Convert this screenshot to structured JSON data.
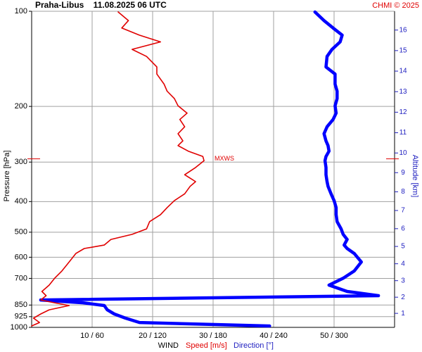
{
  "chart_data": {
    "type": "line",
    "title": "Praha-Libus    11.08.2025 06 UTC",
    "source": "CHMI © 2025",
    "ylabel": "Pressure [hPa]",
    "y2label": "Altitude [km]",
    "xlabel": "WIND",
    "pressure": [
      990,
      965,
      935,
      907,
      880,
      853,
      836,
      819,
      794,
      770,
      735,
      699,
      663,
      621,
      584,
      563,
      549,
      527,
      508,
      488,
      463,
      440,
      418,
      397,
      378,
      358,
      346,
      329,
      312,
      297,
      288,
      277,
      266,
      257,
      244,
      232,
      220,
      210,
      199,
      189,
      179,
      170,
      158,
      150,
      139,
      132,
      125,
      119,
      113,
      107,
      100.5
    ],
    "series": [
      {
        "name": "Speed [m/s]",
        "color": "#e00000",
        "axis": "x",
        "values": [
          0,
          1.3,
          0.3,
          1.5,
          2.9,
          6.2,
          3.8,
          1.5,
          2.4,
          1.7,
          2.9,
          3.8,
          5.0,
          6.2,
          7.3,
          8.7,
          12.0,
          13.1,
          16.6,
          19.0,
          19.5,
          21.3,
          22.4,
          23.6,
          25.3,
          26.2,
          27.1,
          25.3,
          27.1,
          28.5,
          28.3,
          25.9,
          24.2,
          25.0,
          24.2,
          25.3,
          24.5,
          25.7,
          24.2,
          23.6,
          22.4,
          21.9,
          20.7,
          20.7,
          19.0,
          16.6,
          21.3,
          17.8,
          14.9,
          16.0,
          14.3
        ]
      },
      {
        "name": "Direction [°]",
        "color": "#0000ff",
        "axis": "x2",
        "values": [
          236,
          107,
          93,
          82,
          75,
          72,
          51,
          9,
          344,
          313,
          295,
          309,
          320,
          327,
          320,
          313,
          310,
          313,
          309,
          307,
          303,
          302,
          302,
          300,
          297,
          294,
          293,
          292,
          292,
          291,
          292,
          295,
          294,
          292,
          290,
          293,
          299,
          302,
          301,
          303,
          303,
          301,
          301,
          292,
          293,
          298,
          306,
          308,
          299,
          290,
          281
        ]
      }
    ],
    "xlim": [
      0,
      60
    ],
    "x2lim": [
      0,
      360
    ],
    "xticks": [
      {
        "value": 10,
        "label": "10 / 60"
      },
      {
        "value": 20,
        "label": "20 / 120"
      },
      {
        "value": 30,
        "label": "30 / 180"
      },
      {
        "value": 40,
        "label": "40 / 240"
      },
      {
        "value": 50,
        "label": "50 / 300"
      }
    ],
    "ylim": [
      1000,
      100
    ],
    "ylog": true,
    "yticks": [
      100,
      200,
      300,
      400,
      500,
      600,
      700,
      850,
      925,
      1000
    ],
    "y2ticks": [
      1,
      2,
      3,
      4,
      5,
      6,
      7,
      8,
      9,
      10,
      11,
      12,
      13,
      14,
      15,
      16
    ],
    "grid": true,
    "annotation": {
      "text": "MXWS",
      "pressure": 293
    }
  }
}
